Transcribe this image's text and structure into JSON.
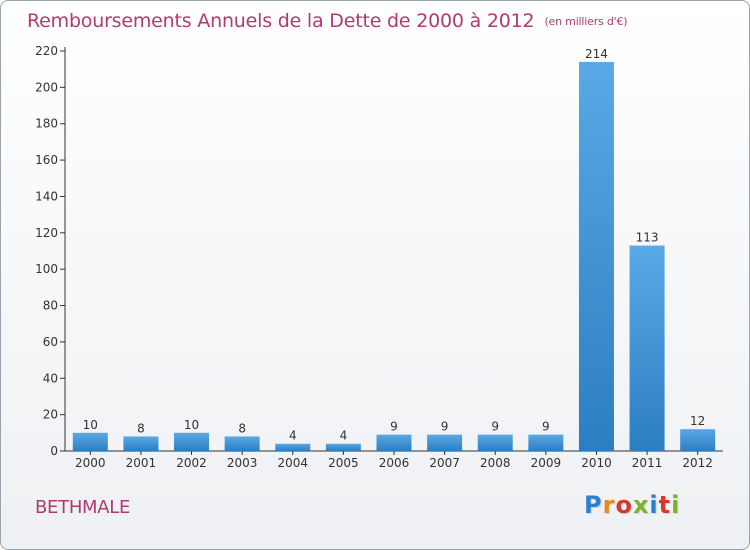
{
  "header": {
    "title": "Remboursements Annuels de la Dette de 2000 à 2012",
    "unit": "(en milliers d'€)"
  },
  "footer": {
    "commune": "BETHMALE",
    "logo": "Proxiti"
  },
  "colors": {
    "title": "#b23a6e",
    "bar_light": "#5aa9e6",
    "bar_dark": "#2b7ec2",
    "axis": "#333333"
  },
  "chart_data": {
    "type": "bar",
    "title": "Remboursements Annuels de la Dette de 2000 à 2012",
    "xlabel": "",
    "ylabel": "",
    "categories": [
      "2000",
      "2001",
      "2002",
      "2003",
      "2004",
      "2005",
      "2006",
      "2007",
      "2008",
      "2009",
      "2010",
      "2011",
      "2012"
    ],
    "values": [
      10,
      8,
      10,
      8,
      4,
      4,
      9,
      9,
      9,
      9,
      214,
      113,
      12
    ],
    "ylim": [
      0,
      220
    ],
    "yticks": [
      0,
      20,
      40,
      60,
      80,
      100,
      120,
      140,
      160,
      180,
      200,
      220
    ],
    "grid": false,
    "legend": "none"
  }
}
